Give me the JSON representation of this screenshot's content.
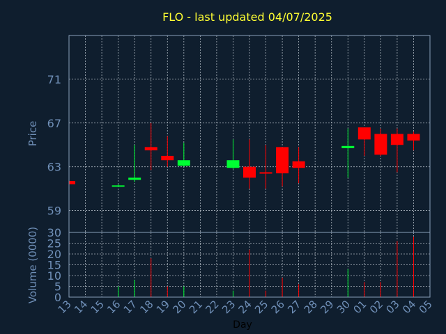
{
  "chart_data": {
    "type": "candlestick",
    "title": "FLO - last updated 04/07/2025",
    "xlabel": "Day",
    "price_ylabel": "Price",
    "volume_ylabel": "Volume (0000)",
    "x_ticks": [
      "13",
      "14",
      "15",
      "16",
      "17",
      "18",
      "19",
      "20",
      "21",
      "22",
      "23",
      "24",
      "25",
      "26",
      "27",
      "28",
      "29",
      "30",
      "01",
      "02",
      "03",
      "04",
      "05"
    ],
    "price_ticks": [
      59,
      63,
      67,
      71
    ],
    "price_ylim": [
      57.0,
      75.0
    ],
    "volume_ticks": [
      0,
      5,
      10,
      15,
      20,
      25,
      30
    ],
    "volume_ylim": [
      0,
      30
    ],
    "grid": true,
    "colors": {
      "up": "#00ff33",
      "down": "#ff0000",
      "title": "#ffff33",
      "axis_text": "#7090b8",
      "frame": "#8aa0bb",
      "grid": "#c8d0d8"
    },
    "candles": [
      {
        "x": "13",
        "open": 61.7,
        "close": 61.4,
        "high": 61.7,
        "low": 61.4,
        "volume": 0
      },
      {
        "x": "16",
        "open": 61.2,
        "close": 61.3,
        "high": 61.4,
        "low": 61.2,
        "volume": 5
      },
      {
        "x": "17",
        "open": 61.8,
        "close": 62.0,
        "high": 65.0,
        "low": 61.6,
        "volume": 8
      },
      {
        "x": "18",
        "open": 64.8,
        "close": 64.5,
        "high": 67.0,
        "low": 62.7,
        "volume": 18
      },
      {
        "x": "19",
        "open": 64.0,
        "close": 63.6,
        "high": 65.8,
        "low": 63.0,
        "volume": 5
      },
      {
        "x": "20",
        "open": 63.1,
        "close": 63.6,
        "high": 65.2,
        "low": 63.0,
        "volume": 5
      },
      {
        "x": "23",
        "open": 62.9,
        "close": 63.6,
        "high": 65.5,
        "low": 62.8,
        "volume": 3
      },
      {
        "x": "24",
        "open": 63.0,
        "close": 62.0,
        "high": 65.5,
        "low": 61.0,
        "volume": 22
      },
      {
        "x": "25",
        "open": 62.5,
        "close": 62.4,
        "high": 65.0,
        "low": 61.0,
        "volume": 3
      },
      {
        "x": "26",
        "open": 64.8,
        "close": 62.4,
        "high": 64.8,
        "low": 61.2,
        "volume": 9
      },
      {
        "x": "27",
        "open": 63.5,
        "close": 62.9,
        "high": 64.8,
        "low": 61.5,
        "volume": 6
      },
      {
        "x": "30",
        "open": 64.7,
        "close": 64.9,
        "high": 66.5,
        "low": 62.0,
        "volume": 13
      },
      {
        "x": "01",
        "open": 66.6,
        "close": 65.5,
        "high": 66.6,
        "low": 64.0,
        "volume": 7
      },
      {
        "x": "02",
        "open": 66.0,
        "close": 64.1,
        "high": 66.5,
        "low": 64.0,
        "volume": 7
      },
      {
        "x": "03",
        "open": 66.0,
        "close": 65.0,
        "high": 66.5,
        "low": 62.5,
        "volume": 26
      },
      {
        "x": "04",
        "open": 66.0,
        "close": 65.4,
        "high": 66.2,
        "low": 64.5,
        "volume": 28
      }
    ]
  }
}
